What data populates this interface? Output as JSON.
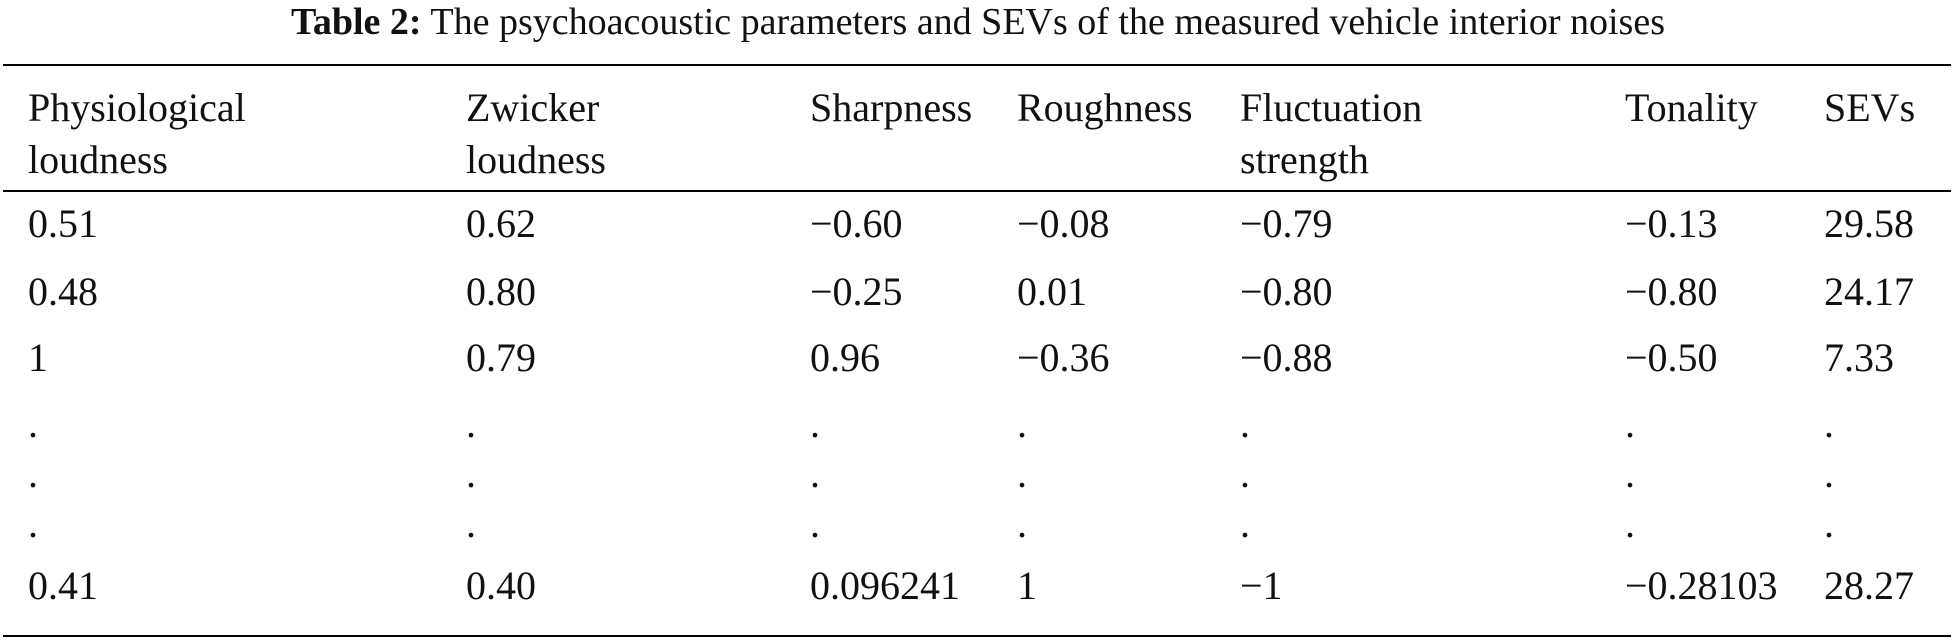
{
  "caption": {
    "label": "Table 2:",
    "text": "The psychoacoustic parameters and SEVs of the measured vehicle interior noises"
  },
  "table": {
    "headers": [
      [
        "Physiological",
        "loudness"
      ],
      [
        "Zwicker",
        "loudness"
      ],
      [
        "Sharpness"
      ],
      [
        "Roughness"
      ],
      [
        "Fluctuation",
        "strength"
      ],
      [
        "Tonality"
      ],
      [
        "SEVs"
      ]
    ],
    "rows": [
      [
        "0.51",
        "0.62",
        "−0.60",
        "−0.08",
        "−0.79",
        "−0.13",
        "29.58"
      ],
      [
        "0.48",
        "0.80",
        "−0.25",
        "0.01",
        "−0.80",
        "−0.80",
        "24.17"
      ],
      [
        "1",
        "0.79",
        "0.96",
        "−0.36",
        "−0.88",
        "−0.50",
        "7.33"
      ],
      [
        ".",
        ".",
        ".",
        ".",
        ".",
        ".",
        "."
      ],
      [
        ".",
        ".",
        ".",
        ".",
        ".",
        ".",
        "."
      ],
      [
        ".",
        ".",
        ".",
        ".",
        ".",
        ".",
        "."
      ],
      [
        "0.41",
        "0.40",
        "0.096241",
        "1",
        "−1",
        "−0.28103",
        "28.27"
      ]
    ]
  }
}
